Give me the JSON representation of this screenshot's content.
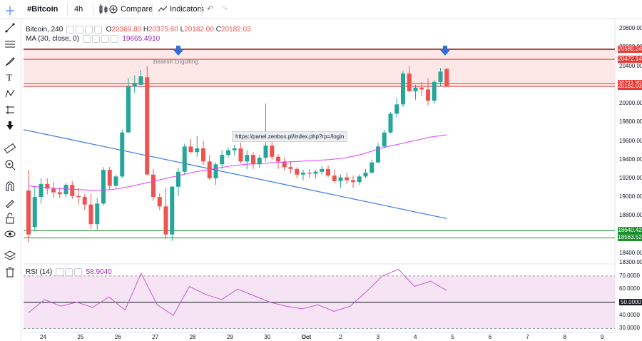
{
  "toolbar": {
    "symbol": "#Bitcoin",
    "interval": "4h",
    "compare_label": "Compare",
    "indicators_label": "Indicators"
  },
  "legend": {
    "symbol_name": "Bitcoin, 240",
    "open_label": "O",
    "open": "20369.80",
    "high_label": "H",
    "high": "20375.60",
    "low_label": "L",
    "low": "20182.00",
    "close_label": "C",
    "close": "20182.03",
    "ma_label": "MA (30, close, 0)",
    "ma_value": "19665.4910",
    "rsi_label": "RSI (14)",
    "rsi_value": "58.9040"
  },
  "annotation": {
    "pattern_label": "Bearish Engulfing"
  },
  "tooltip": {
    "url": "https://panel.zenbox.pl/index.php?rp=/login"
  },
  "price_axis": [
    "20800.00",
    "20600.00",
    "20400.00",
    "20200.00",
    "20000.00",
    "19800.00",
    "19600.00",
    "19400.00",
    "19200.00",
    "19000.00",
    "18800.00",
    "18600.00",
    "18400.00",
    "18300.00"
  ],
  "price_tags": [
    {
      "value": "20580.24",
      "color": "#e53935"
    },
    {
      "value": "20472.14",
      "color": "#e53935"
    },
    {
      "value": "20211.80",
      "color": "#e53935"
    },
    {
      "value": "20182.03",
      "color": "#e53935"
    },
    {
      "value": "18640.42",
      "color": "#1b8e2d"
    },
    {
      "value": "18563.52",
      "color": "#1b8e2d"
    }
  ],
  "rsi_axis": [
    "70.0000",
    "60.0000",
    "50.0000",
    "40.0000",
    "30.0000"
  ],
  "time_axis": [
    "24",
    "25",
    "26",
    "27",
    "28",
    "29",
    "30",
    "Oct",
    "2",
    "3",
    "4",
    "5",
    "6",
    "7",
    "8",
    "9"
  ],
  "colors": {
    "up": "#26a69a",
    "down": "#ef5350",
    "ma": "#e040fb",
    "trend": "#4a7fe0",
    "rsi": "#c060c8"
  },
  "chart_data": {
    "type": "candlestick",
    "price_range": [
      18300,
      20900
    ],
    "horizontal_levels": [
      20580.24,
      20472.14,
      20211.8,
      20182.03,
      18640.42,
      18563.52
    ],
    "ma_30": [
      19120,
      19100,
      19090,
      19080,
      19070,
      19080,
      19110,
      19150,
      19190,
      19230,
      19270,
      19300,
      19330,
      19350,
      19360,
      19370,
      19380,
      19390,
      19400,
      19420,
      19460,
      19520,
      19560,
      19600,
      19640,
      19665
    ],
    "rsi": [
      42,
      52,
      47,
      50,
      46,
      54,
      44,
      72,
      48,
      40,
      62,
      56,
      52,
      60,
      55,
      50,
      47,
      45,
      48,
      43,
      47,
      58,
      70,
      75,
      62,
      66,
      58.9
    ],
    "candles": [
      [
        19070,
        19290,
        18520,
        18600
      ],
      [
        18680,
        19120,
        18640,
        19000
      ],
      [
        19000,
        19200,
        18930,
        19140
      ],
      [
        19140,
        19200,
        19030,
        19090
      ],
      [
        19090,
        19160,
        18990,
        19050
      ],
      [
        19050,
        19100,
        18990,
        19030
      ],
      [
        19030,
        19150,
        19000,
        19130
      ],
      [
        19130,
        19170,
        18980,
        19010
      ],
      [
        19010,
        19100,
        18920,
        19000
      ],
      [
        19000,
        19030,
        18860,
        18920
      ],
      [
        18920,
        19040,
        18660,
        18710
      ],
      [
        18710,
        18990,
        18650,
        18930
      ],
      [
        18930,
        19320,
        18910,
        19290
      ],
      [
        19290,
        19320,
        19080,
        19120
      ],
      [
        19120,
        19240,
        19100,
        19220
      ],
      [
        19220,
        19720,
        19200,
        19690
      ],
      [
        19690,
        20270,
        19690,
        20180
      ],
      [
        20180,
        20300,
        20110,
        20220
      ],
      [
        20200,
        20360,
        20200,
        20290
      ],
      [
        20280,
        20400,
        19250,
        19240
      ],
      [
        19240,
        19300,
        18960,
        19000
      ],
      [
        19000,
        19040,
        18860,
        18900
      ],
      [
        18900,
        19100,
        18550,
        18600
      ],
      [
        18600,
        19120,
        18530,
        19110
      ],
      [
        19110,
        19310,
        19010,
        19270
      ],
      [
        19270,
        19570,
        19240,
        19540
      ],
      [
        19540,
        19620,
        19470,
        19480
      ],
      [
        19480,
        19650,
        19430,
        19520
      ],
      [
        19520,
        19600,
        19340,
        19380
      ],
      [
        19380,
        19450,
        19180,
        19200
      ],
      [
        19200,
        19370,
        19130,
        19350
      ],
      [
        19350,
        19500,
        19300,
        19450
      ],
      [
        19450,
        19530,
        19420,
        19500
      ],
      [
        19500,
        19560,
        19440,
        19520
      ],
      [
        19520,
        19580,
        19360,
        19380
      ],
      [
        19380,
        19500,
        19300,
        19450
      ],
      [
        19450,
        19480,
        19300,
        19350
      ],
      [
        19350,
        19450,
        19310,
        19420
      ],
      [
        19420,
        20000,
        19380,
        19550
      ],
      [
        19550,
        19620,
        19400,
        19430
      ],
      [
        19430,
        19460,
        19300,
        19380
      ],
      [
        19380,
        19420,
        19280,
        19320
      ],
      [
        19320,
        19380,
        19250,
        19300
      ],
      [
        19300,
        19320,
        19200,
        19240
      ],
      [
        19240,
        19290,
        19180,
        19260
      ],
      [
        19260,
        19300,
        19200,
        19250
      ],
      [
        19250,
        19290,
        19200,
        19270
      ],
      [
        19270,
        19330,
        19240,
        19300
      ],
      [
        19300,
        19340,
        19210,
        19230
      ],
      [
        19230,
        19290,
        19150,
        19170
      ],
      [
        19170,
        19240,
        19100,
        19210
      ],
      [
        19210,
        19260,
        19140,
        19180
      ],
      [
        19180,
        19230,
        19100,
        19160
      ],
      [
        19160,
        19240,
        19130,
        19220
      ],
      [
        19220,
        19300,
        19200,
        19260
      ],
      [
        19260,
        19400,
        19250,
        19370
      ],
      [
        19370,
        19580,
        19360,
        19540
      ],
      [
        19540,
        19720,
        19520,
        19690
      ],
      [
        19690,
        19910,
        19680,
        19890
      ],
      [
        19890,
        20060,
        19850,
        19990
      ],
      [
        19990,
        20350,
        19960,
        20320
      ],
      [
        20320,
        20400,
        20120,
        20130
      ],
      [
        20130,
        20200,
        20040,
        20170
      ],
      [
        20170,
        20230,
        20080,
        20150
      ],
      [
        20150,
        20270,
        19980,
        20030
      ],
      [
        20030,
        20250,
        20000,
        20230
      ],
      [
        20230,
        20380,
        20180,
        20340
      ],
      [
        20369.8,
        20375.6,
        20182,
        20182.03
      ]
    ],
    "trend_line": {
      "from": [
        0,
        19720
      ],
      "to": [
        67,
        18770
      ]
    }
  }
}
